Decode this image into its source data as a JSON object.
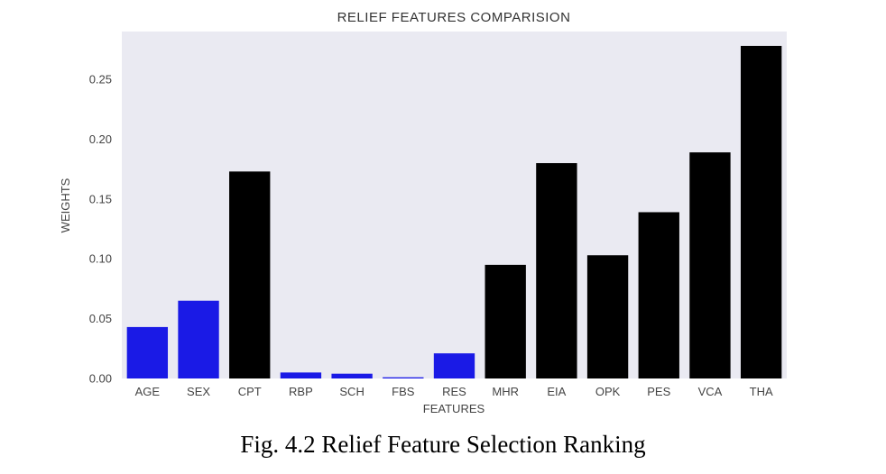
{
  "chart_data": {
    "type": "bar",
    "title": "RELIEF FEATURES COMPARISION",
    "xlabel": "FEATURES",
    "ylabel": "WEIGHTS",
    "categories": [
      "AGE",
      "SEX",
      "CPT",
      "RBP",
      "SCH",
      "FBS",
      "RES",
      "MHR",
      "EIA",
      "OPK",
      "PES",
      "VCA",
      "THA"
    ],
    "values": [
      0.043,
      0.065,
      0.173,
      0.005,
      0.004,
      0.001,
      0.021,
      0.095,
      0.18,
      0.103,
      0.139,
      0.189,
      0.278
    ],
    "bar_colors": [
      "#1a1ae6",
      "#1a1ae6",
      "#000000",
      "#1a1ae6",
      "#1a1ae6",
      "#1a1ae6",
      "#1a1ae6",
      "#000000",
      "#000000",
      "#000000",
      "#000000",
      "#000000",
      "#000000"
    ],
    "ylim": [
      0,
      0.29
    ],
    "yticks": [
      "0.00",
      "0.05",
      "0.10",
      "0.15",
      "0.20",
      "0.25"
    ],
    "grid": false,
    "background": "#eaeaf2"
  },
  "caption": "Fig. 4.2 Relief Feature Selection Ranking"
}
